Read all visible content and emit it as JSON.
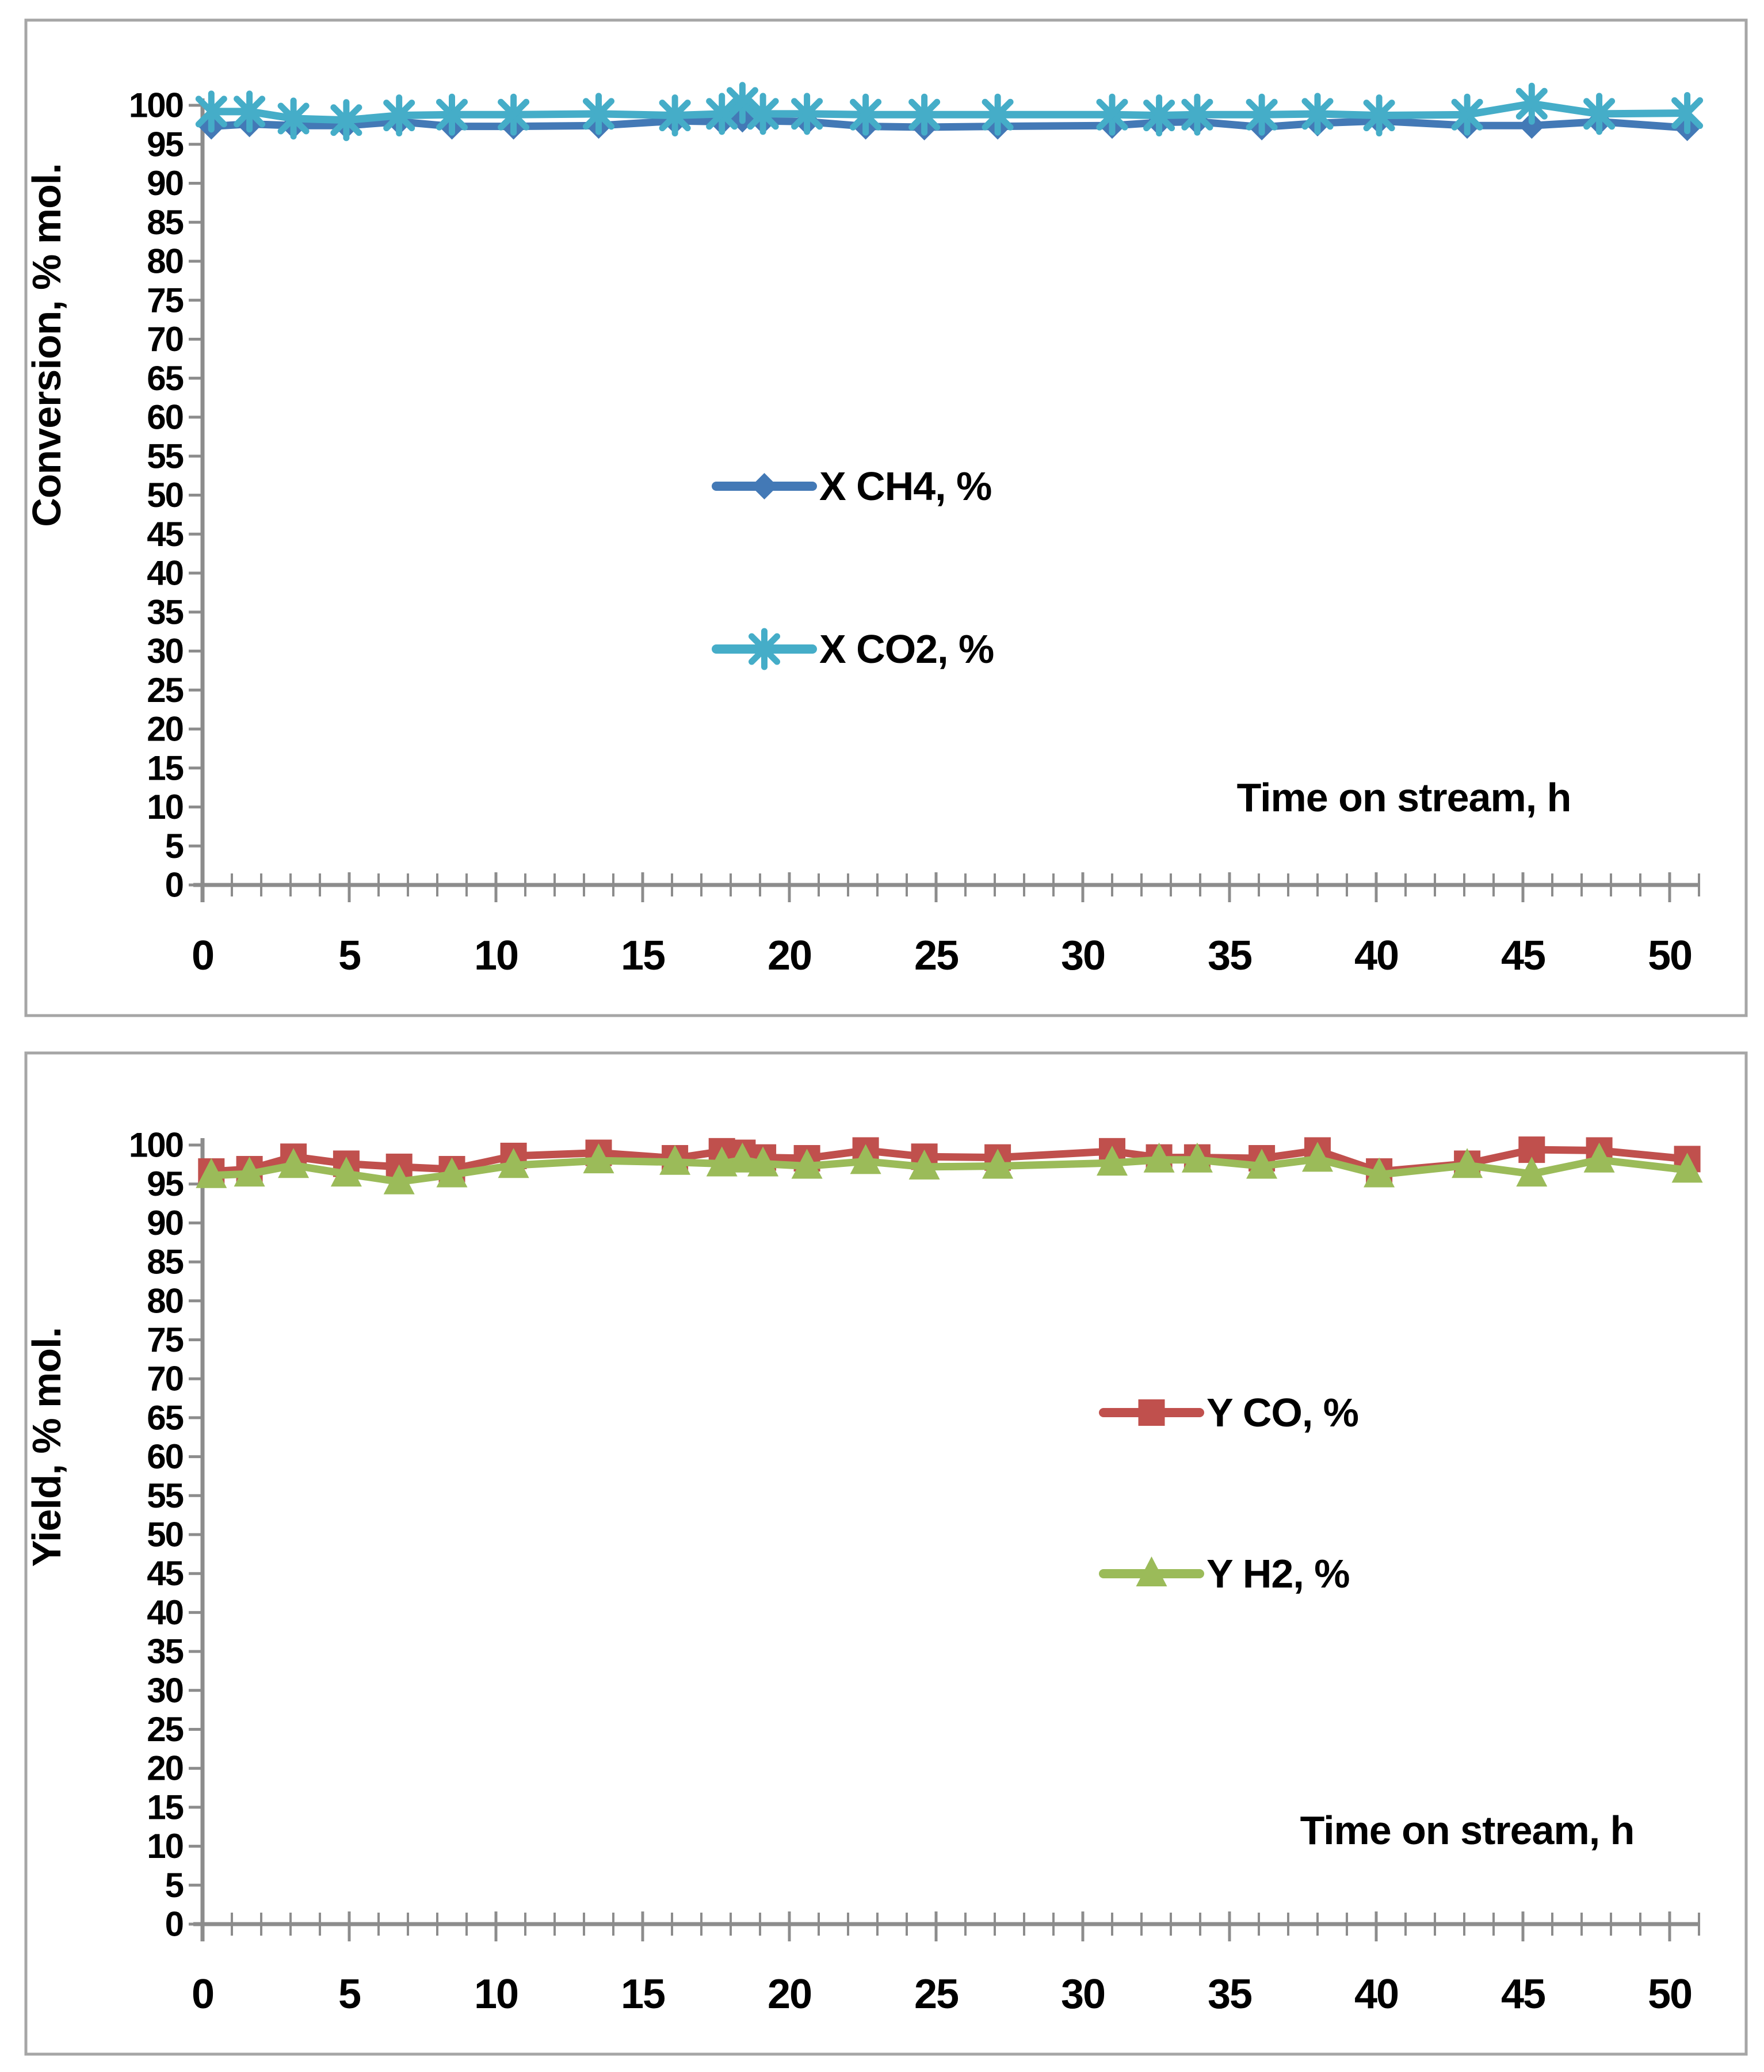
{
  "colors": {
    "background": "#FFFFFF",
    "panel_border": "#A6A6A6",
    "axis": "#8C8C8C",
    "text": "#000000",
    "series_blue": "#4379B6",
    "series_cyan": "#45ADC8",
    "series_red": "#C0504D",
    "series_green": "#9BBB59"
  },
  "chart_data": [
    {
      "type": "line",
      "title": "",
      "ylabel": "Conversion, % mol.",
      "xlabel": "Time on stream, h",
      "xlim": [
        0,
        51
      ],
      "ylim": [
        0,
        100
      ],
      "x_ticks": [
        0,
        5,
        10,
        15,
        20,
        25,
        30,
        35,
        40,
        45,
        50
      ],
      "y_ticks": [
        0,
        5,
        10,
        15,
        20,
        25,
        30,
        35,
        40,
        45,
        50,
        55,
        60,
        65,
        70,
        75,
        80,
        85,
        90,
        95,
        100
      ],
      "x_minor_tick_step": 1,
      "grid": false,
      "legend_position": "inside-center-left",
      "x": [
        0.3,
        1.6,
        3.1,
        4.9,
        6.7,
        8.5,
        10.6,
        13.5,
        16.1,
        17.7,
        18.4,
        19.1,
        20.6,
        22.6,
        24.6,
        27.1,
        31.0,
        32.6,
        33.9,
        36.1,
        38.0,
        40.1,
        43.1,
        45.3,
        47.6,
        50.6
      ],
      "series": [
        {
          "name": "X CH4, %",
          "marker": "diamond",
          "color": "#4379B6",
          "values": [
            97.3,
            97.6,
            97.4,
            97.4,
            97.9,
            97.3,
            97.3,
            97.4,
            98.0,
            97.9,
            98.2,
            98.0,
            97.9,
            97.3,
            97.2,
            97.3,
            97.4,
            97.8,
            97.9,
            97.2,
            97.7,
            98.0,
            97.4,
            97.4,
            97.9,
            97.1
          ]
        },
        {
          "name": "X CO2, %",
          "marker": "asterisk",
          "color": "#45ADC8",
          "values": [
            99.2,
            99.2,
            98.3,
            98.1,
            98.7,
            98.8,
            98.8,
            98.9,
            98.7,
            98.9,
            100.3,
            98.9,
            98.9,
            98.8,
            98.8,
            98.8,
            98.8,
            98.7,
            98.8,
            98.8,
            98.9,
            98.7,
            98.8,
            100.2,
            98.9,
            99.0
          ]
        }
      ]
    },
    {
      "type": "line",
      "title": "",
      "ylabel": "Yield, % mol.",
      "xlabel": "Time on stream, h",
      "xlim": [
        0,
        51
      ],
      "ylim": [
        0,
        100
      ],
      "x_ticks": [
        0,
        5,
        10,
        15,
        20,
        25,
        30,
        35,
        40,
        45,
        50
      ],
      "y_ticks": [
        0,
        5,
        10,
        15,
        20,
        25,
        30,
        35,
        40,
        45,
        50,
        55,
        60,
        65,
        70,
        75,
        80,
        85,
        90,
        95,
        100
      ],
      "x_minor_tick_step": 1,
      "grid": false,
      "legend_position": "inside-center-right",
      "x": [
        0.3,
        1.6,
        3.1,
        4.9,
        6.7,
        8.5,
        10.6,
        13.5,
        16.1,
        17.7,
        18.4,
        19.1,
        20.6,
        22.6,
        24.6,
        27.1,
        31.0,
        32.6,
        33.9,
        36.1,
        38.0,
        40.1,
        43.1,
        45.3,
        47.6,
        50.6
      ],
      "series": [
        {
          "name": "Y CO, %",
          "marker": "square",
          "color": "#C0504D",
          "values": [
            96.6,
            96.9,
            98.5,
            97.6,
            97.2,
            96.9,
            98.6,
            99.0,
            98.3,
            99.2,
            99.0,
            98.4,
            98.3,
            99.3,
            98.5,
            98.4,
            99.2,
            98.4,
            98.4,
            98.3,
            99.3,
            96.6,
            97.6,
            99.4,
            99.3,
            98.2
          ]
        },
        {
          "name": "Y H2, %",
          "marker": "triangle",
          "color": "#9BBB59",
          "values": [
            96.1,
            96.3,
            97.4,
            96.3,
            95.3,
            96.2,
            97.4,
            98.0,
            97.8,
            97.6,
            98.1,
            97.6,
            97.3,
            97.9,
            97.2,
            97.3,
            97.7,
            98.1,
            98.1,
            97.3,
            98.2,
            96.2,
            97.4,
            96.3,
            98.1,
            96.8
          ]
        }
      ]
    }
  ]
}
